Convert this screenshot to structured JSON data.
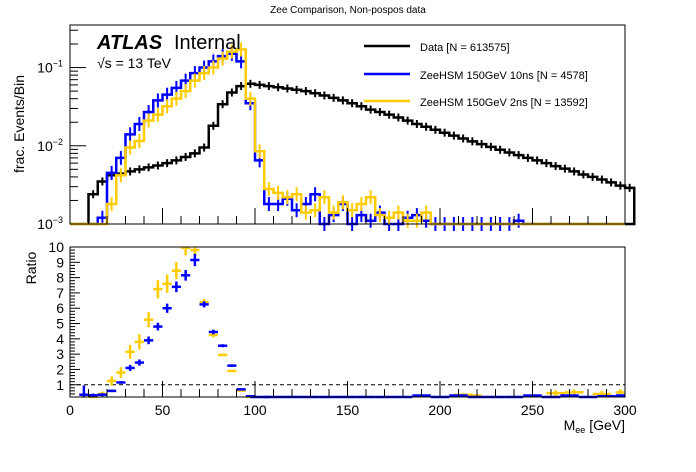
{
  "chart_data": [
    {
      "type": "line",
      "title": "Zee Comparison, Non-pospos data",
      "xlabel": "",
      "ylabel": "frac. Events/Bin",
      "xlim": [
        0,
        300
      ],
      "ylim": [
        0.001,
        0.35
      ],
      "yscale": "log",
      "ytick_labels": [
        "10^-3",
        "10^-2",
        "10^-1"
      ],
      "yticks": [
        0.001,
        0.01,
        0.1
      ],
      "bin_width": 5,
      "atlas_label": {
        "bold": "ATLAS",
        "text": "Internal",
        "energy": "√s = 13 TeV"
      },
      "legend": {
        "position": "top-right",
        "entries": [
          {
            "label": "Data [N = 613575]",
            "color": "#000000"
          },
          {
            "label": "ZeeHSM 150GeV 10ns [N = 4578]",
            "color": "#0000ff"
          },
          {
            "label": "ZeeHSM 150GeV 2ns [N = 13592]",
            "color": "#ffcc00"
          }
        ]
      },
      "series": [
        {
          "name": "Data [N = 613575]",
          "color": "#000000",
          "x_start": 10,
          "values": [
            0.0024,
            0.0035,
            0.0042,
            0.0044,
            0.0047,
            0.005,
            0.0053,
            0.0056,
            0.006,
            0.0065,
            0.0072,
            0.008,
            0.0095,
            0.018,
            0.034,
            0.048,
            0.058,
            0.062,
            0.06,
            0.058,
            0.056,
            0.054,
            0.052,
            0.05,
            0.047,
            0.044,
            0.041,
            0.038,
            0.035,
            0.032,
            0.029,
            0.027,
            0.025,
            0.023,
            0.021,
            0.019,
            0.0175,
            0.016,
            0.0147,
            0.0135,
            0.0124,
            0.0114,
            0.0105,
            0.0097,
            0.0089,
            0.0082,
            0.0076,
            0.007,
            0.0065,
            0.006,
            0.0055,
            0.0051,
            0.0047,
            0.0043,
            0.004,
            0.0037,
            0.0034,
            0.0031,
            0.0029
          ]
        },
        {
          "name": "ZeeHSM 150GeV 10ns [N = 4578]",
          "color": "#0000ff",
          "x_start": 15,
          "values": [
            0.0012,
            0.0045,
            0.007,
            0.014,
            0.019,
            0.027,
            0.038,
            0.045,
            0.055,
            0.068,
            0.085,
            0.1,
            0.12,
            0.14,
            0.15,
            0.12,
            0.035,
            0.0065,
            0.0018,
            0.0018,
            0.0021,
            0.0015,
            0.0018,
            0.0024,
            0.0008,
            0.0013,
            0.0018,
            0.0009,
            0.0013,
            0.0011,
            0.0014,
            0.0008,
            0.0008,
            0.0012,
            0.0013,
            0.0011,
            0.0009,
            0.0008,
            0.0008,
            0.0008,
            0.0008,
            0.0008,
            0.0008,
            0.0008,
            0.0008,
            0.0011
          ]
        },
        {
          "name": "ZeeHSM 150GeV 2ns [N = 13592]",
          "color": "#ffcc00",
          "x_start": 20,
          "values": [
            0.0018,
            0.0042,
            0.0095,
            0.0115,
            0.021,
            0.025,
            0.032,
            0.04,
            0.05,
            0.068,
            0.085,
            0.1,
            0.13,
            0.16,
            0.17,
            0.04,
            0.0085,
            0.0028,
            0.0025,
            0.0022,
            0.0024,
            0.0014,
            0.0015,
            0.0022,
            0.0014,
            0.0019,
            0.0015,
            0.0018,
            0.0022,
            0.0013,
            0.0012,
            0.0014,
            0.0011,
            0.0011,
            0.0014
          ]
        }
      ]
    },
    {
      "type": "scatter",
      "title": "",
      "xlabel": "M_ee [GeV]",
      "xlabel_main": "M",
      "xlabel_sub": "ee",
      "xlabel_unit": " [GeV]",
      "ylabel": "Ratio",
      "xlim": [
        0,
        300
      ],
      "ylim": [
        0.2,
        10
      ],
      "xticks": [
        0,
        50,
        100,
        150,
        200,
        250,
        300
      ],
      "xtick_labels": [
        "0",
        "50",
        "100",
        "150",
        "200",
        "250",
        "300"
      ],
      "yticks": [
        1,
        2,
        3,
        4,
        5,
        6,
        7,
        8,
        9,
        10
      ],
      "ytick_labels": [
        "1",
        "2",
        "3",
        "4",
        "5",
        "6",
        "7",
        "8",
        "9",
        "10"
      ],
      "reference_line": 1,
      "series": [
        {
          "name": "ZeeHSM 150GeV 10ns / Data",
          "color": "#0000ff",
          "x": [
            7.5,
            12.5,
            17.5,
            22.5,
            27.5,
            32.5,
            37.5,
            42.5,
            47.5,
            52.5,
            57.5,
            62.5,
            67.5,
            72.5,
            77.5,
            82.5,
            87.5,
            92.5,
            97.5,
            102.5,
            110,
            120,
            130,
            140,
            150,
            160,
            170,
            180,
            190,
            200,
            210,
            220,
            230,
            240,
            250,
            260,
            270,
            280,
            290,
            297.5
          ],
          "y": [
            0.35,
            0.32,
            0.35,
            0.6,
            1.15,
            2.1,
            2.45,
            3.9,
            4.8,
            6.0,
            7.4,
            8.15,
            9.15,
            6.25,
            4.45,
            3.55,
            2.25,
            0.7,
            0.25,
            0.2,
            0.2,
            0.2,
            0.2,
            0.2,
            0.2,
            0.2,
            0.2,
            0.2,
            0.3,
            0.2,
            0.3,
            0.2,
            0.2,
            0.2,
            0.3,
            0.2,
            0.3,
            0.2,
            0.25,
            0.3
          ],
          "yerr": [
            0.6,
            0.1,
            0.1,
            0.08,
            0.08,
            0.2,
            0.2,
            0.25,
            0.25,
            0.3,
            0.35,
            0.35,
            0.4,
            0.2,
            0.15,
            0.1,
            0.08,
            0.05,
            0.03,
            0.02,
            0.02,
            0.02,
            0.02,
            0.02,
            0.02,
            0.02,
            0.02,
            0.02,
            0.05,
            0.02,
            0.05,
            0.02,
            0.02,
            0.02,
            0.05,
            0.02,
            0.05,
            0.02,
            0.05,
            0.05
          ]
        },
        {
          "name": "ZeeHSM 150GeV 2ns / Data",
          "color": "#ffcc00",
          "x": [
            12.5,
            17.5,
            22.5,
            27.5,
            32.5,
            37.5,
            42.5,
            47.5,
            52.5,
            57.5,
            62.5,
            67.5,
            72.5,
            77.5,
            82.5,
            87.5,
            92.5,
            97.5,
            212.5,
            217.5,
            262.5,
            272.5,
            287.5,
            297.5
          ],
          "y": [
            0.2,
            0.4,
            1.25,
            1.8,
            3.15,
            3.8,
            5.25,
            7.25,
            7.6,
            8.45,
            9.95,
            9.8,
            6.4,
            4.25,
            2.95,
            1.9,
            0.62,
            0.22,
            0.35,
            0.3,
            0.45,
            0.5,
            0.4,
            0.5
          ],
          "yerr": [
            0.15,
            0.15,
            0.3,
            0.35,
            0.45,
            0.5,
            0.5,
            0.6,
            0.6,
            0.55,
            0.5,
            0.4,
            0.2,
            0.15,
            0.08,
            0.06,
            0.05,
            0.03,
            0.1,
            0.1,
            0.2,
            0.2,
            0.2,
            0.2
          ]
        }
      ]
    }
  ]
}
